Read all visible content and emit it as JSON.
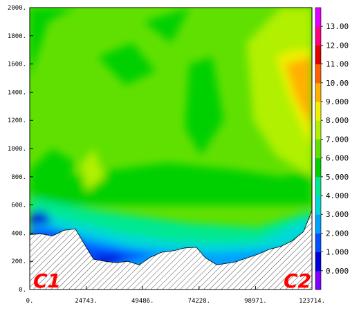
{
  "chart_data": {
    "type": "heatmap",
    "x_ticks": [
      "0.",
      "24743.",
      "49486.",
      "74228.",
      "98971.",
      "123714."
    ],
    "y_ticks": [
      "0.",
      "200.",
      "400.",
      "600.",
      "800.",
      "1000.",
      "1200.",
      "1400.",
      "1600.",
      "1800.",
      "2000."
    ],
    "xlim": [
      0,
      123714
    ],
    "ylim": [
      0,
      2000
    ],
    "colorbar": {
      "levels": [
        0,
        1,
        2,
        3,
        4,
        5,
        6,
        7,
        8,
        9,
        10,
        11,
        12,
        13
      ],
      "labels": [
        "0.000",
        "1.000",
        "2.000",
        "3.000",
        "4.000",
        "5.000",
        "6.000",
        "7.000",
        "8.000",
        "9.000",
        "10.00",
        "11.00",
        "12.00",
        "13.00"
      ],
      "colors": [
        "#8000ff",
        "#0000d8",
        "#0050ff",
        "#00a0ff",
        "#00d8d8",
        "#00e890",
        "#00d000",
        "#60e000",
        "#b0f000",
        "#f0f000",
        "#ffb000",
        "#ff6000",
        "#e00000",
        "#ff0080",
        "#e000ff"
      ]
    },
    "annotations": [
      "C1",
      "C2"
    ],
    "terrain": [
      [
        0,
        390
      ],
      [
        5000,
        395
      ],
      [
        10000,
        380
      ],
      [
        15000,
        420
      ],
      [
        20000,
        430
      ],
      [
        24000,
        320
      ],
      [
        28000,
        215
      ],
      [
        33000,
        200
      ],
      [
        38000,
        190
      ],
      [
        43000,
        200
      ],
      [
        48000,
        175
      ],
      [
        53000,
        230
      ],
      [
        58000,
        265
      ],
      [
        63000,
        275
      ],
      [
        68000,
        295
      ],
      [
        73000,
        300
      ],
      [
        77000,
        225
      ],
      [
        82000,
        175
      ],
      [
        90000,
        195
      ],
      [
        100000,
        250
      ],
      [
        105000,
        285
      ],
      [
        110000,
        305
      ],
      [
        115000,
        345
      ],
      [
        120000,
        410
      ],
      [
        123714,
        560
      ]
    ]
  }
}
